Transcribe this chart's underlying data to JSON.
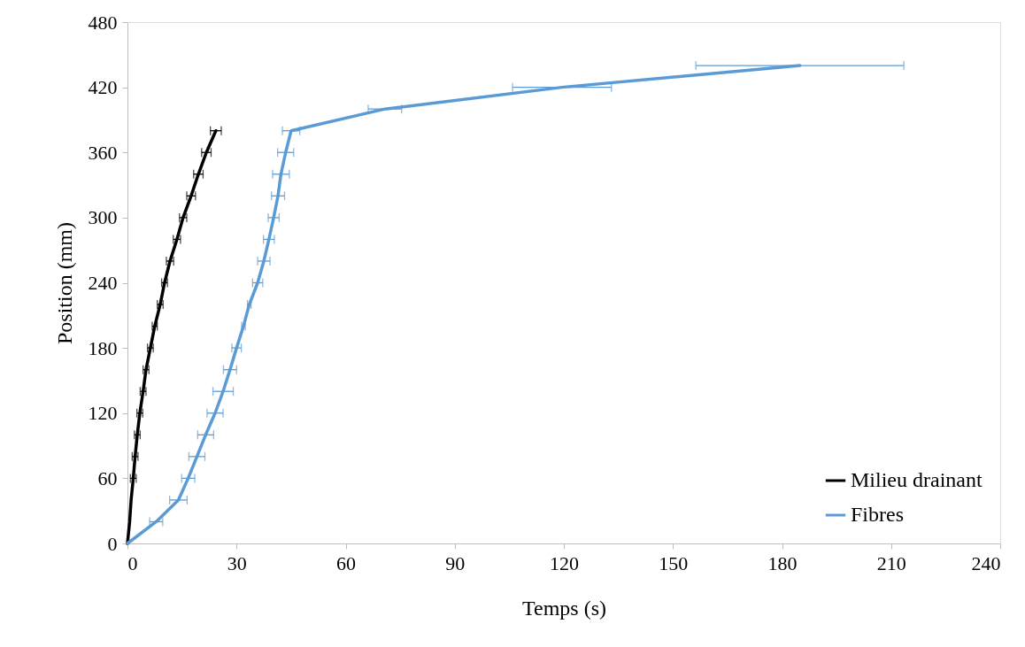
{
  "chart_data": {
    "type": "line",
    "xlabel": "Temps (s)",
    "ylabel": "Position (mm)",
    "xlim": [
      0,
      240
    ],
    "xticks": [
      0,
      30,
      60,
      90,
      120,
      150,
      180,
      210,
      240
    ],
    "ylim": [
      0,
      480
    ],
    "yticks": [
      0,
      60,
      120,
      180,
      240,
      300,
      360,
      420,
      480
    ],
    "grid": false,
    "legend": "bottom right",
    "marker": "none",
    "line_style": "solid",
    "series": [
      {
        "name": "Milieu drainant",
        "color": "#000000",
        "x": [
          0,
          0.6,
          1,
          1.6,
          2.1,
          2.7,
          3.4,
          4.3,
          5.1,
          6.3,
          7.5,
          9,
          10.2,
          11.7,
          13.6,
          15.3,
          17.5,
          19.5,
          21.7,
          24.3
        ],
        "values": [
          0,
          20,
          40,
          60,
          80,
          100,
          120,
          140,
          160,
          180,
          200,
          220,
          240,
          260,
          280,
          300,
          320,
          340,
          360,
          380
        ],
        "xerrors": [
          null,
          null,
          null,
          0.8,
          0.8,
          0.8,
          0.8,
          0.8,
          0.8,
          0.8,
          0.7,
          0.8,
          0.8,
          1,
          1,
          1,
          1.2,
          1.3,
          1.3,
          1.5
        ]
      },
      {
        "name": "Fibres",
        "color": "#5b9bd5",
        "x": [
          0,
          7.9,
          14.0,
          16.7,
          19.1,
          21.5,
          24.1,
          26.3,
          28.2,
          30,
          31.9,
          33.5,
          35.8,
          37.5,
          38.9,
          40.2,
          41.4,
          42.2,
          43.5,
          45.0,
          70.8,
          119.5,
          184.9
        ],
        "values": [
          0,
          20,
          40,
          60,
          80,
          100,
          120,
          140,
          160,
          180,
          200,
          220,
          240,
          260,
          280,
          300,
          320,
          340,
          360,
          380,
          400,
          420,
          440
        ],
        "xerrors": [
          null,
          1.8,
          2.4,
          1.8,
          2.2,
          2.2,
          2.2,
          2.8,
          1.8,
          1.3,
          0.5,
          0.5,
          1.4,
          1.7,
          1.5,
          1.5,
          1.8,
          2.3,
          2.2,
          2.4,
          4.6,
          13.6,
          28.6
        ]
      }
    ]
  }
}
